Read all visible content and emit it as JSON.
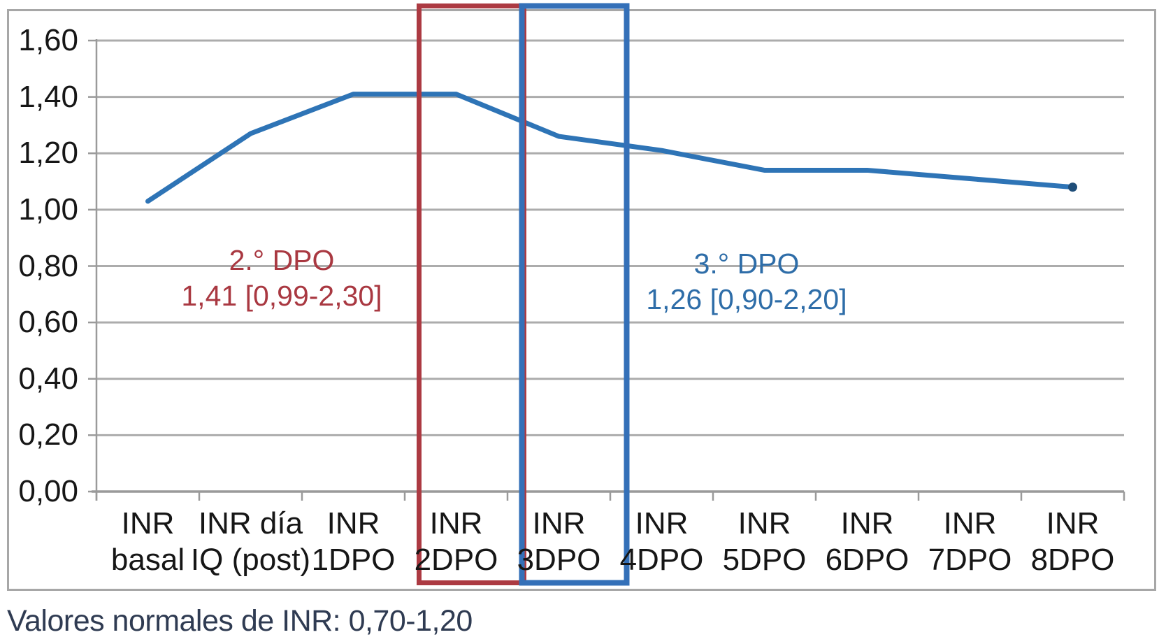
{
  "chart_data": {
    "type": "line",
    "title": "",
    "xlabel": "",
    "ylabel": "",
    "categories": [
      "INR basal",
      "INR día IQ (post)",
      "INR 1DPO",
      "INR 2DPO",
      "INR 3DPO",
      "INR 4DPO",
      "INR 5DPO",
      "INR 6DPO",
      "INR 7DPO",
      "INR 8DPO"
    ],
    "categories_two_line": [
      {
        "line1": "INR",
        "line2": "basal"
      },
      {
        "line1": "INR día",
        "line2": "IQ (post)"
      },
      {
        "line1": "INR",
        "line2": "1DPO"
      },
      {
        "line1": "INR",
        "line2": "2DPO"
      },
      {
        "line1": "INR",
        "line2": "3DPO"
      },
      {
        "line1": "INR",
        "line2": "4DPO"
      },
      {
        "line1": "INR",
        "line2": "5DPO"
      },
      {
        "line1": "INR",
        "line2": "6DPO"
      },
      {
        "line1": "INR",
        "line2": "7DPO"
      },
      {
        "line1": "INR",
        "line2": "8DPO"
      }
    ],
    "series": [
      {
        "name": "INR",
        "values": [
          1.03,
          1.27,
          1.41,
          1.41,
          1.26,
          1.21,
          1.14,
          1.14,
          1.11,
          1.08
        ],
        "color": "#2E74B6",
        "endpoint_marker": true
      }
    ],
    "ylim": [
      0,
      1.6
    ],
    "ytick_values": [
      0.0,
      0.2,
      0.4,
      0.6,
      0.8,
      1.0,
      1.2,
      1.4,
      1.6
    ],
    "ytick_labels": [
      "0,00",
      "0,20",
      "0,40",
      "0,60",
      "0,80",
      "1,00",
      "1,20",
      "1,40",
      "1,60"
    ],
    "decimal_separator": ",",
    "grid": true,
    "legend": "none",
    "annotations": [
      {
        "target_category": "INR 2DPO",
        "line1": "2.° DPO",
        "line2": "1,41 [0,99-2,30]",
        "color": "#A93841"
      },
      {
        "target_category": "INR 3DPO",
        "line1": "3.° DPO",
        "line2": "1,26 [0,90-2,20]",
        "color": "#2E6DA8"
      }
    ],
    "highlight_boxes": [
      {
        "target_category": "INR 2DPO",
        "color": "#AC3A42"
      },
      {
        "target_category": "INR 3DPO",
        "color": "#3470B8"
      }
    ],
    "note": "Valores normales de INR: 0,70-1,20",
    "colors": {
      "line": "#2E74B6",
      "endpoint_marker": "#1F4E79",
      "grid": "#ACACAC",
      "axis": "#9A9A9A",
      "outer_border": "#A7A7A7",
      "tick_label_text": "#161616",
      "note_text": "#2F3B52",
      "highlight_red": "#AC3A42",
      "highlight_blue": "#3470B8",
      "background": "#FFFFFF"
    }
  }
}
